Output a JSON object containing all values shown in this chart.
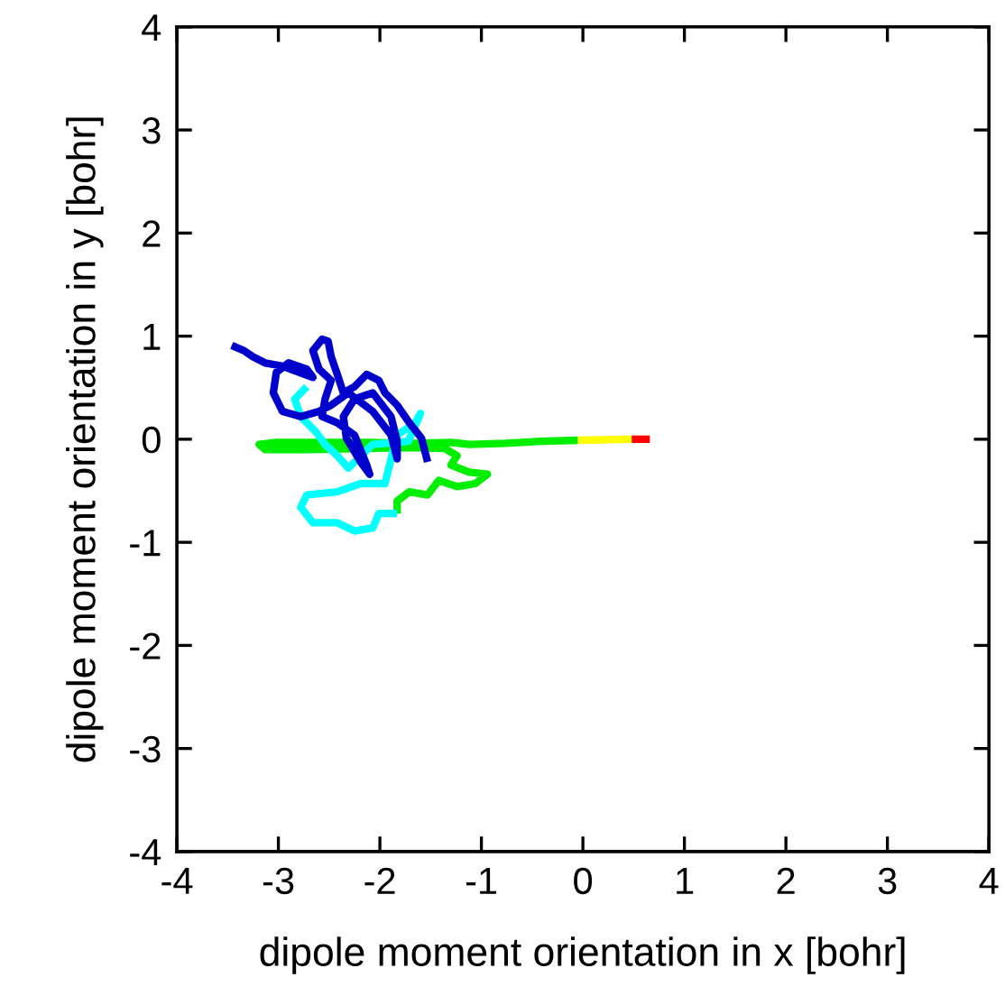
{
  "chart_data": {
    "type": "line",
    "xlabel": "dipole moment orientation in x [bohr]",
    "ylabel": "dipole moment orientation in y [bohr]",
    "xlim": [
      -4,
      4
    ],
    "ylim": [
      -4,
      4
    ],
    "xticks": [
      -4,
      -3,
      -2,
      -1,
      0,
      1,
      2,
      3,
      4
    ],
    "yticks": [
      -4,
      -3,
      -2,
      -1,
      0,
      1,
      2,
      3,
      4
    ],
    "grid": false,
    "marker": "none",
    "line_style": "solid",
    "series": [
      {
        "color": "#ff0000",
        "x": [
          0.66,
          0.48
        ],
        "values": [
          0.0,
          0.0
        ]
      },
      {
        "color": "#ffff00",
        "x": [
          0.48,
          -0.05
        ],
        "values": [
          0.0,
          -0.01
        ]
      },
      {
        "color": "#00ee00",
        "x": [
          -0.05,
          -0.41,
          -0.76,
          -1.12,
          -1.3,
          -1.65,
          -2.13,
          -2.54,
          -3.02,
          -3.19,
          -3.13,
          -2.72,
          -2.13,
          -1.71,
          -1.36,
          -1.24,
          -1.3,
          -1.12,
          -0.94,
          -1.06,
          -1.24,
          -1.42,
          -1.53,
          -1.71,
          -1.83,
          -1.83
        ],
        "values": [
          -0.01,
          -0.02,
          -0.04,
          -0.05,
          -0.03,
          -0.04,
          -0.03,
          -0.03,
          -0.03,
          -0.05,
          -0.1,
          -0.1,
          -0.09,
          -0.08,
          -0.09,
          -0.16,
          -0.25,
          -0.32,
          -0.34,
          -0.43,
          -0.46,
          -0.4,
          -0.54,
          -0.51,
          -0.6,
          -0.72
        ]
      },
      {
        "color": "#00ffff",
        "x": [
          -1.83,
          -2.01,
          -2.07,
          -2.25,
          -2.42,
          -2.66,
          -2.78,
          -2.72,
          -2.42,
          -2.19,
          -1.95,
          -1.89,
          -1.83,
          -1.65,
          -1.6,
          -1.72,
          -2.07,
          -2.31,
          -2.42,
          -2.54,
          -2.63,
          -2.78,
          -2.84,
          -2.72
        ],
        "values": [
          -0.72,
          -0.72,
          -0.86,
          -0.89,
          -0.81,
          -0.81,
          -0.66,
          -0.54,
          -0.51,
          -0.43,
          -0.43,
          -0.19,
          0.04,
          0.16,
          0.25,
          -0.02,
          -0.05,
          -0.28,
          -0.16,
          -0.05,
          0.07,
          0.22,
          0.39,
          0.51
        ]
      },
      {
        "color": "#0000cc",
        "x": [
          -1.53,
          -1.59,
          -1.71,
          -1.83,
          -1.95,
          -2.01,
          -2.13,
          -2.25,
          -2.36,
          -2.42,
          -2.48,
          -2.51,
          -2.57,
          -2.66,
          -2.6,
          -2.48,
          -2.54,
          -2.57,
          -2.42,
          -2.25,
          -2.13,
          -2.1,
          -2.19,
          -2.33,
          -2.36,
          -2.25,
          -2.07,
          -1.89,
          -1.83,
          -1.83,
          -1.89,
          -2.07,
          -2.31,
          -2.48,
          -2.6,
          -2.78,
          -2.96,
          -3.05,
          -3.02,
          -2.9,
          -2.72,
          -2.66,
          -2.96,
          -3.13,
          -3.25,
          -3.34,
          -3.46
        ],
        "values": [
          -0.22,
          0.01,
          0.16,
          0.33,
          0.45,
          0.57,
          0.63,
          0.51,
          0.45,
          0.63,
          0.8,
          0.95,
          0.97,
          0.86,
          0.68,
          0.57,
          0.39,
          0.22,
          0.16,
          0.04,
          -0.25,
          -0.34,
          -0.22,
          0.01,
          0.22,
          0.39,
          0.45,
          0.22,
          -0.02,
          -0.19,
          0.04,
          0.27,
          0.45,
          0.33,
          0.27,
          0.22,
          0.27,
          0.45,
          0.65,
          0.74,
          0.68,
          0.6,
          0.71,
          0.74,
          0.8,
          0.86,
          0.91
        ]
      }
    ]
  }
}
